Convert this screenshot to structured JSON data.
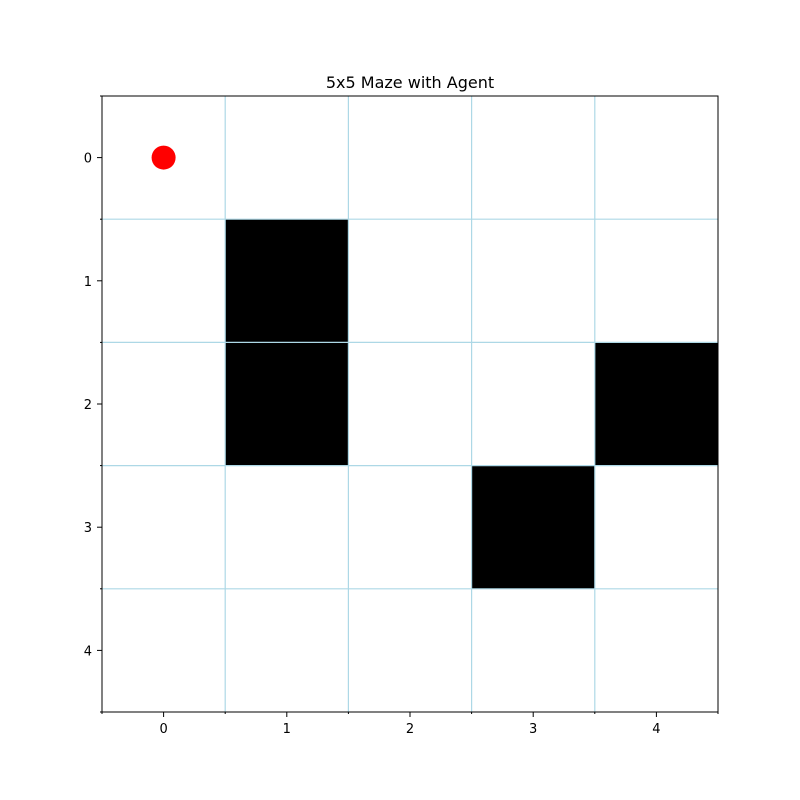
{
  "chart_data": {
    "type": "heatmap",
    "title": "5x5 Maze with Agent",
    "rows": 5,
    "cols": 5,
    "xlim": [
      -0.5,
      4.5
    ],
    "ylim": [
      4.5,
      -0.5
    ],
    "x_ticks": [
      0,
      1,
      2,
      3,
      4
    ],
    "y_ticks": [
      0,
      1,
      2,
      3,
      4
    ],
    "x_tick_labels": [
      "0",
      "1",
      "2",
      "3",
      "4"
    ],
    "y_tick_labels": [
      "0",
      "1",
      "2",
      "3",
      "4"
    ],
    "grid": true,
    "walls": [
      {
        "row": 1,
        "col": 1
      },
      {
        "row": 2,
        "col": 1
      },
      {
        "row": 2,
        "col": 4
      },
      {
        "row": 3,
        "col": 3
      }
    ],
    "agent": {
      "row": 0,
      "col": 0
    },
    "colors": {
      "wall": "#000000",
      "open": "#ffffff",
      "grid": "#add8e6",
      "agent": "#ff0000",
      "axis": "#000000"
    }
  }
}
